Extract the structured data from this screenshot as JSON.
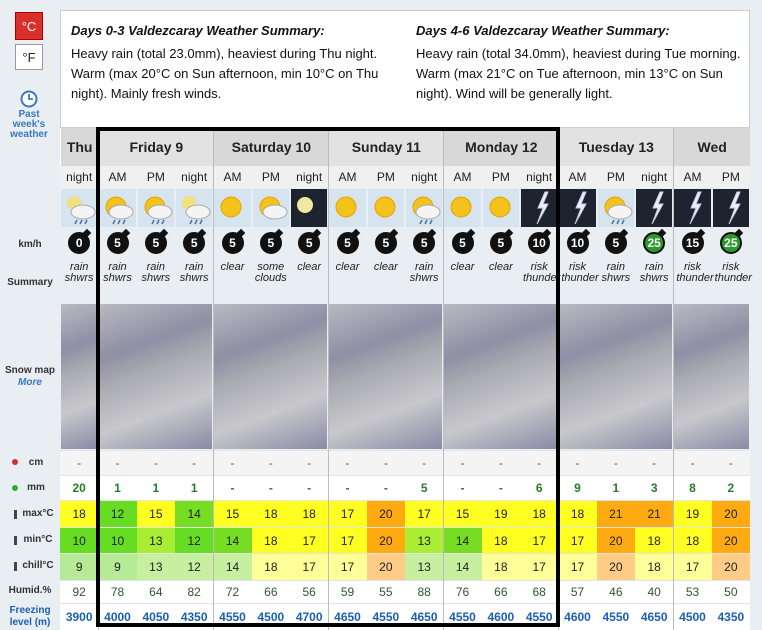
{
  "units": {
    "celsius": "°C",
    "fahrenheit": "°F"
  },
  "past_weather": "Past week's weather",
  "summaries": [
    {
      "title": "Days 0-3 Valdezcaray Weather Summary:",
      "text": "Heavy rain (total 23.0mm), heaviest during Thu night. Warm (max 20°C on Sun afternoon, min 10°C on Thu night). Mainly fresh winds."
    },
    {
      "title": "Days 4-6 Valdezcaray Weather Summary:",
      "text": "Heavy rain (total 34.0mm), heaviest during Tue morning. Warm (max 21°C on Tue afternoon, min 13°C on Sun night). Wind will be generally light."
    }
  ],
  "row_labels": {
    "wind": "km/h",
    "summary": "Summary",
    "snow_map": "Snow map",
    "more": "More",
    "snow": "cm",
    "rain": "mm",
    "max": "max°C",
    "min": "min°C",
    "chill": "chill°C",
    "humidity": "Humid.%",
    "freezing": "Freezing level (m)"
  },
  "days": [
    {
      "name": "Thu",
      "periods": [
        "night"
      ]
    },
    {
      "name": "Friday 9",
      "periods": [
        "AM",
        "PM",
        "night"
      ]
    },
    {
      "name": "Saturday 10",
      "periods": [
        "AM",
        "PM",
        "night"
      ]
    },
    {
      "name": "Sunday 11",
      "periods": [
        "AM",
        "PM",
        "night"
      ]
    },
    {
      "name": "Monday 12",
      "periods": [
        "AM",
        "PM",
        "night"
      ]
    },
    {
      "name": "Tuesday 13",
      "periods": [
        "AM",
        "PM",
        "night"
      ]
    },
    {
      "name": "Wed",
      "periods": [
        "AM",
        "PM"
      ]
    }
  ],
  "rows": {
    "wind": [
      0,
      5,
      5,
      5,
      5,
      5,
      5,
      5,
      5,
      5,
      5,
      5,
      10,
      10,
      5,
      25,
      15,
      25
    ],
    "summary": [
      "rain shwrs",
      "rain shwrs",
      "rain shwrs",
      "rain shwrs",
      "clear",
      "some clouds",
      "clear",
      "clear",
      "clear",
      "rain shwrs",
      "clear",
      "clear",
      "risk thunder",
      "risk thunder",
      "rain shwrs",
      "rain shwrs",
      "risk thunder",
      "risk thunder"
    ],
    "snow": [
      "-",
      "-",
      "-",
      "-",
      "-",
      "-",
      "-",
      "-",
      "-",
      "-",
      "-",
      "-",
      "-",
      "-",
      "-",
      "-",
      "-",
      "-"
    ],
    "rain": [
      20,
      1,
      1,
      1,
      "-",
      "-",
      "-",
      "-",
      "-",
      5,
      "-",
      "-",
      6,
      9,
      1,
      3,
      8,
      2
    ],
    "max": [
      18,
      12,
      15,
      14,
      15,
      18,
      18,
      17,
      20,
      17,
      15,
      19,
      18,
      18,
      21,
      21,
      19,
      20
    ],
    "min": [
      10,
      10,
      13,
      12,
      14,
      18,
      17,
      17,
      20,
      13,
      14,
      18,
      17,
      17,
      20,
      18,
      18,
      20
    ],
    "chill": [
      9,
      9,
      13,
      12,
      14,
      18,
      17,
      17,
      20,
      13,
      14,
      18,
      17,
      17,
      20,
      18,
      17,
      20
    ],
    "humidity": [
      92,
      78,
      64,
      82,
      72,
      66,
      56,
      59,
      55,
      88,
      76,
      66,
      68,
      57,
      46,
      40,
      53,
      50
    ],
    "freezing": [
      3900,
      4000,
      4050,
      4350,
      4550,
      4500,
      4700,
      4650,
      4550,
      4650,
      4550,
      4600,
      4550,
      4600,
      4550,
      4650,
      4500,
      4350
    ]
  }
}
